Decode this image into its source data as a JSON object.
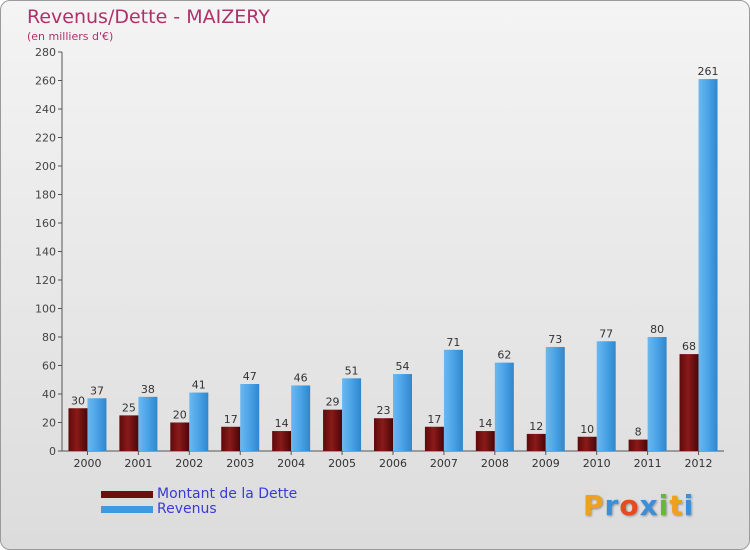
{
  "title": "Revenus/Dette - MAIZERY",
  "subtitle": "(en milliers d'€)",
  "chart_data": {
    "type": "bar",
    "title": "Revenus/Dette - MAIZERY",
    "ylabel": "(en milliers d'€)",
    "xlabel": "",
    "categories": [
      "2000",
      "2001",
      "2002",
      "2003",
      "2004",
      "2005",
      "2006",
      "2007",
      "2008",
      "2009",
      "2010",
      "2011",
      "2012"
    ],
    "series": [
      {
        "name": "Montant de la Dette",
        "color": "#7a1212",
        "values": [
          30,
          25,
          20,
          17,
          14,
          29,
          23,
          17,
          14,
          12,
          10,
          8,
          68
        ]
      },
      {
        "name": "Revenus",
        "color": "#4aa3e6",
        "values": [
          37,
          38,
          41,
          47,
          46,
          51,
          54,
          71,
          62,
          73,
          77,
          80,
          261
        ]
      }
    ],
    "ylim": [
      0,
      280
    ],
    "yticks": [
      0,
      20,
      40,
      60,
      80,
      100,
      120,
      140,
      160,
      180,
      200,
      220,
      240,
      260,
      280
    ],
    "grid": false,
    "legend": "bottom-left"
  },
  "legend": {
    "items": [
      {
        "label": "Montant de la Dette",
        "color": "#6b0f0f"
      },
      {
        "label": "Revenus",
        "color": "#3f9ae0"
      }
    ]
  },
  "logo": {
    "letters": [
      "P",
      "r",
      "o",
      "x",
      "i",
      "t",
      "i"
    ],
    "colors": [
      "#f0a020",
      "#3a8fd8",
      "#e84a20",
      "#3a8fd8",
      "#68b830",
      "#f0a020",
      "#3a8fd8"
    ]
  }
}
